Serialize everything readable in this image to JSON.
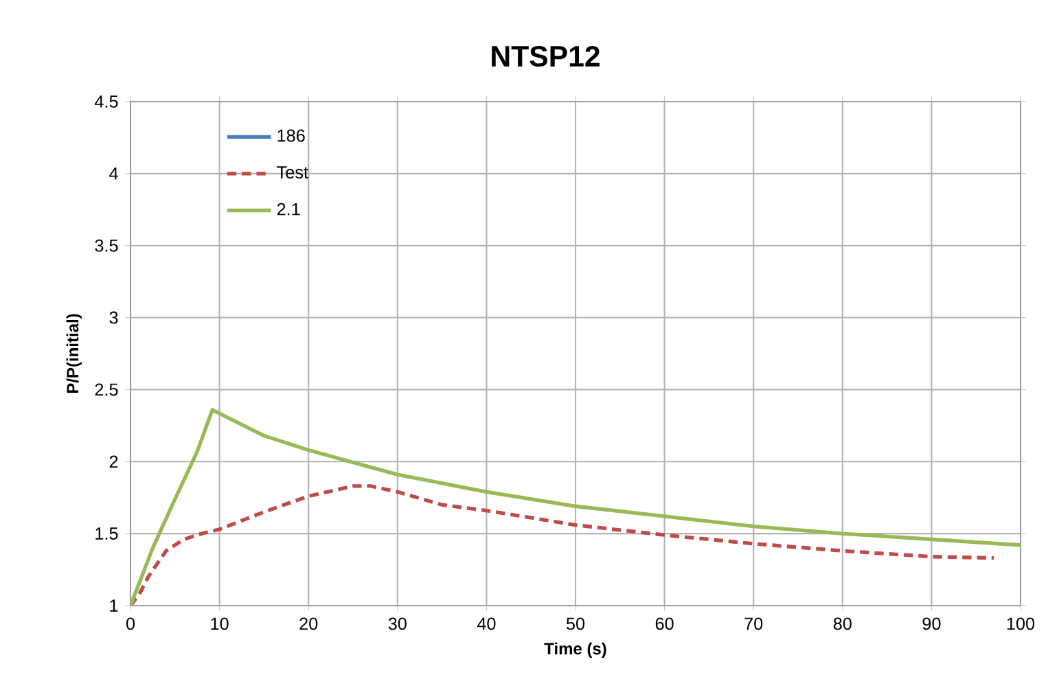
{
  "chart_data": {
    "type": "line",
    "title": "NTSP12",
    "xlabel": "Time (s)",
    "ylabel": "P/P(initial)",
    "xlim": [
      0,
      100
    ],
    "xticks": [
      0,
      10,
      20,
      30,
      40,
      50,
      60,
      70,
      80,
      90,
      100
    ],
    "ylim": [
      1,
      4.5
    ],
    "yticks": [
      1,
      1.5,
      2,
      2.5,
      3,
      3.5,
      4,
      4.5
    ],
    "grid": true,
    "legend": "top left",
    "series": [
      {
        "name": "186",
        "color": "#4a7ebb",
        "line_style": "solid"
      },
      {
        "name": "Test",
        "color": "#be4b48",
        "line_style": "dashed",
        "x": [
          0,
          1,
          2,
          4,
          6,
          8,
          10,
          15,
          20,
          25,
          27,
          30,
          35,
          40,
          50,
          60,
          70,
          80,
          90,
          97
        ],
        "values": [
          1.0,
          1.08,
          1.2,
          1.38,
          1.46,
          1.5,
          1.53,
          1.65,
          1.76,
          1.83,
          1.83,
          1.79,
          1.7,
          1.66,
          1.56,
          1.49,
          1.43,
          1.38,
          1.34,
          1.33
        ]
      },
      {
        "name": "2.1",
        "color": "#98b954",
        "line_style": "solid",
        "x": [
          0,
          2.5,
          5,
          7.5,
          9.2,
          15,
          20,
          30,
          40,
          50,
          60,
          70,
          80,
          90,
          100
        ],
        "values": [
          1.0,
          1.4,
          1.74,
          2.07,
          2.36,
          2.18,
          2.08,
          1.91,
          1.79,
          1.69,
          1.62,
          1.55,
          1.5,
          1.46,
          1.42
        ]
      }
    ]
  }
}
